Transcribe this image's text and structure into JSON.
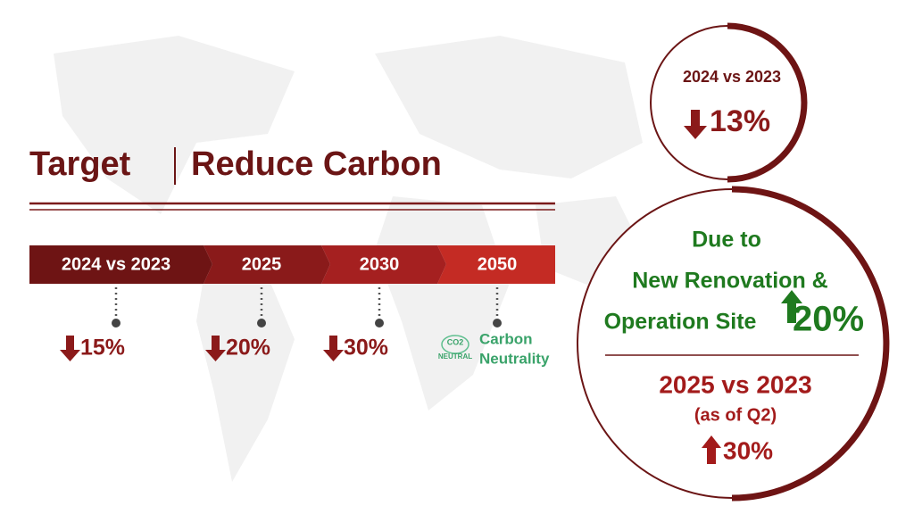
{
  "header": {
    "title_left": "Target",
    "title_right": "Reduce Carbon"
  },
  "timeline": [
    {
      "label": "2024 vs 2023",
      "change": "15%"
    },
    {
      "label": "2025",
      "change": "20%"
    },
    {
      "label": "2030",
      "change": "30%"
    },
    {
      "label": "2050",
      "badge": [
        "CO2",
        "NEUTRAL"
      ],
      "note": [
        "Carbon",
        "Neutrality"
      ]
    }
  ],
  "top_circle": {
    "label": "2024 vs 2023",
    "change": "13%"
  },
  "big_circle": {
    "reason": [
      "Due to",
      "New Renovation &",
      "Operation Site"
    ],
    "reason_change": "20%",
    "comparison": "2025 vs 2023",
    "period": "(as of Q2)",
    "change": "30%"
  }
}
